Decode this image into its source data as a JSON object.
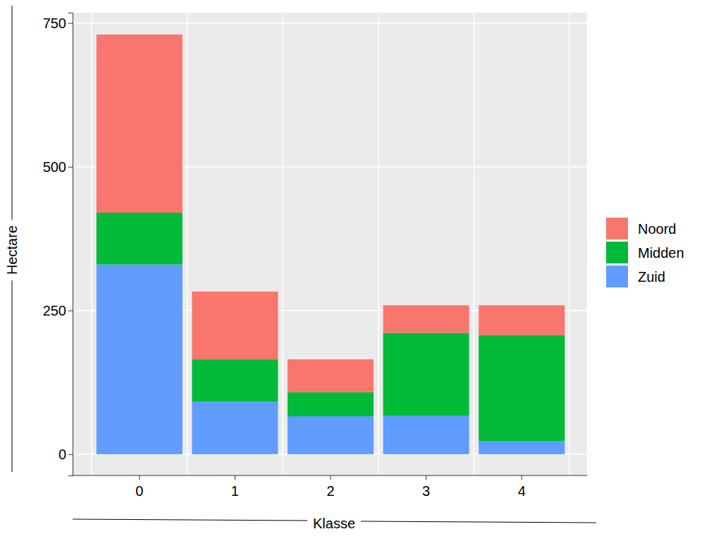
{
  "chart_data": {
    "type": "bar",
    "stacked": true,
    "grid": true,
    "legend": "right",
    "x_label": "Klasse",
    "y_label": "Hectare",
    "categories": [
      "0",
      "1",
      "2",
      "3",
      "4"
    ],
    "series": [
      {
        "name": "Noord",
        "color": "#F8766D",
        "values": [
          310,
          118,
          57,
          48,
          52
        ]
      },
      {
        "name": "Midden",
        "color": "#00BA38",
        "values": [
          90,
          74,
          42,
          144,
          184
        ]
      },
      {
        "name": "Zuid",
        "color": "#619CFF",
        "values": [
          330,
          91,
          66,
          67,
          23
        ]
      }
    ],
    "ylim": [
      -37,
      768
    ],
    "yticks": [
      0,
      250,
      500,
      750
    ]
  }
}
